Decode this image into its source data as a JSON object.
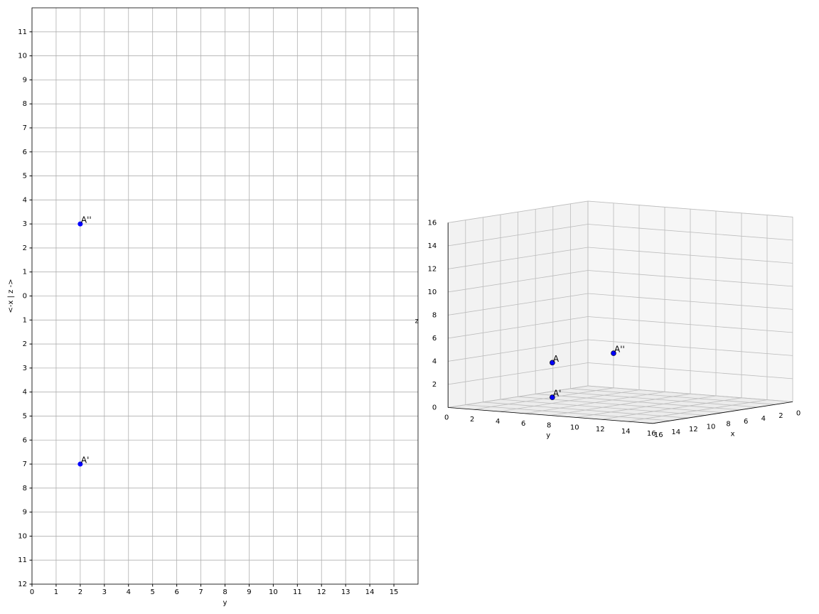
{
  "chart_data": [
    {
      "type": "scatter",
      "xlabel": "y",
      "ylabel": "<-x | z ->",
      "grid": true,
      "color": "#0000ff",
      "xlim": [
        0,
        16
      ],
      "xticks": [
        0,
        1,
        2,
        3,
        4,
        5,
        6,
        7,
        8,
        9,
        10,
        11,
        12,
        13,
        14,
        15
      ],
      "ylim": [
        -12,
        12
      ],
      "yticks": [
        {
          "value": -12,
          "label": "12"
        },
        {
          "value": -11,
          "label": "11"
        },
        {
          "value": -10,
          "label": "10"
        },
        {
          "value": -9,
          "label": "9"
        },
        {
          "value": -8,
          "label": "8"
        },
        {
          "value": -7,
          "label": "7"
        },
        {
          "value": -6,
          "label": "6"
        },
        {
          "value": -5,
          "label": "5"
        },
        {
          "value": -4,
          "label": "4"
        },
        {
          "value": -3,
          "label": "3"
        },
        {
          "value": -2,
          "label": "2"
        },
        {
          "value": -1,
          "label": "1"
        },
        0,
        1,
        2,
        3,
        4,
        5,
        6,
        7,
        8,
        9,
        10,
        11
      ],
      "points": [
        {
          "label": "A''",
          "x": 2,
          "y": 3
        },
        {
          "label": "A'",
          "x": 2,
          "y": -7
        }
      ]
    },
    {
      "type": "scatter3d",
      "xlabel": "x",
      "ylabel": "y",
      "zlabel": "z",
      "grid": true,
      "color": "#0000ff",
      "xlim": [
        0,
        16
      ],
      "ylim": [
        0,
        16
      ],
      "zlim": [
        0,
        16
      ],
      "xticks": [
        0,
        2,
        4,
        6,
        8,
        10,
        12,
        14,
        16
      ],
      "yticks": [
        0,
        2,
        4,
        6,
        8,
        10,
        12,
        14,
        16
      ],
      "zticks": [
        0,
        2,
        4,
        6,
        8,
        10,
        12,
        14,
        16
      ],
      "points": [
        {
          "label": "A",
          "x": 7,
          "y": 2,
          "z": 3
        },
        {
          "label": "A'",
          "x": 7,
          "y": 2,
          "z": 0
        },
        {
          "label": "A''",
          "x": 0,
          "y": 2,
          "z": 3
        }
      ]
    }
  ]
}
